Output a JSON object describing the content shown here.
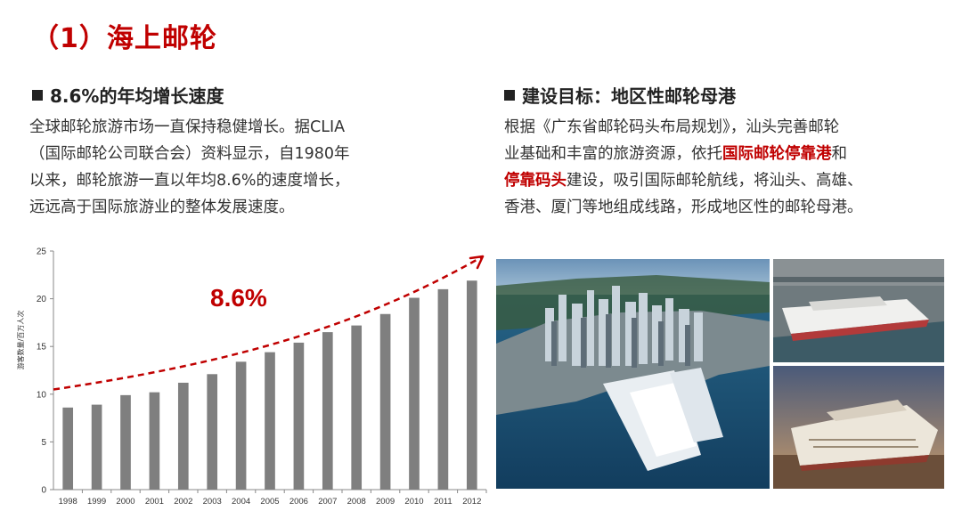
{
  "page": {
    "section_title": "（1）海上邮轮",
    "left": {
      "heading": "8.6%的年均增长速度",
      "paragraph_lines": [
        "全球邮轮旅游市场一直保持稳健增长。据CLIA",
        "（国际邮轮公司联合会）资料显示，自1980年",
        "以来，邮轮旅游一直以年均8.6%的速度增长，",
        "远远高于国际旅游业的整体发展速度。"
      ]
    },
    "right": {
      "heading": "建设目标：地区性邮轮母港",
      "line1": "根据《广东省邮轮码头布局规划》，汕头完善邮轮",
      "line2_prefix": "业基础和丰富的旅游资源，依托",
      "line2_highlight": "国际邮轮停靠港",
      "line2_suffix": "和",
      "line3_highlight": "停靠码头",
      "line3_suffix": "建设，吸引国际邮轮航线，将汕头、高雄、",
      "line4": "香港、厦门等地组成线路，形成地区性的邮轮母港。"
    }
  },
  "colors": {
    "accent": "#c00000",
    "bar": "#7f7f7f",
    "text": "#333333"
  },
  "chart_data": {
    "type": "bar",
    "categories": [
      "1998",
      "1999",
      "2000",
      "2001",
      "2002",
      "2003",
      "2004",
      "2005",
      "2006",
      "2007",
      "2008",
      "2009",
      "2010",
      "2011",
      "2012"
    ],
    "values": [
      8.6,
      8.9,
      9.9,
      10.2,
      11.2,
      12.1,
      13.4,
      14.4,
      15.4,
      16.5,
      17.2,
      18.4,
      20.1,
      21.0,
      21.9
    ],
    "ylabel": "游客数量/百万人次",
    "ylim": [
      0,
      25
    ],
    "yticks": [
      0,
      5,
      10,
      15,
      20,
      25
    ],
    "annotation": "8.6%",
    "trend_arrow": true,
    "grid": false
  },
  "photos": [
    {
      "name": "harbor-city-aerial-photo"
    },
    {
      "name": "cruise-ship-dock-photo"
    },
    {
      "name": "cruise-ship-sunset-photo"
    }
  ]
}
